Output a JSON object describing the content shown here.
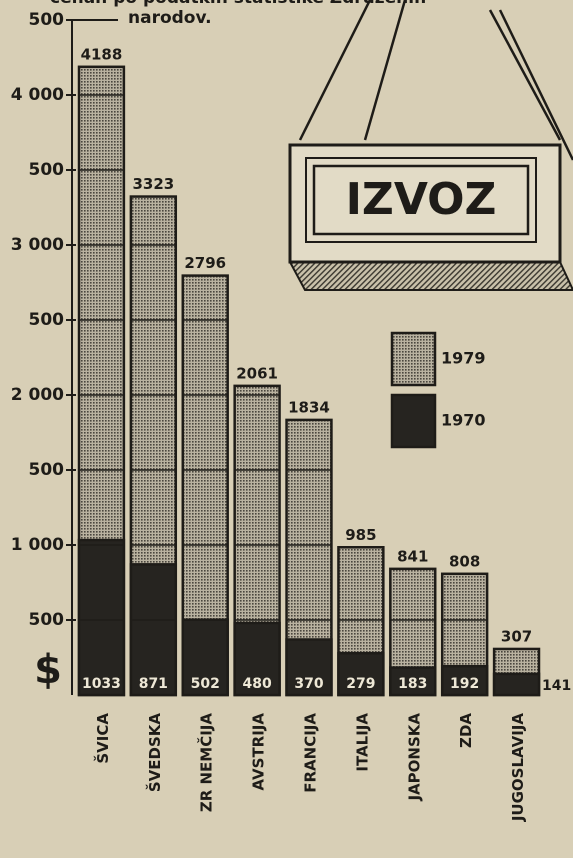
{
  "chart_data": {
    "type": "bar",
    "notes": [
      "cenah po podatkih statistike Združenih",
      "narodov."
    ],
    "annotation": "IZVOZ",
    "y_axis_label": "$",
    "categories": [
      "ŠVICA",
      "ŠVEDSKA",
      "ZR NEMČIJA",
      "AVSTRIJA",
      "FRANCIJA",
      "ITALIJA",
      "JAPONSKA",
      "ZDA",
      "JUGOSLAVIJA"
    ],
    "series": [
      {
        "name": "1979",
        "color": "#8f8a7c",
        "values": [
          4188,
          3323,
          2796,
          2061,
          1834,
          985,
          841,
          808,
          307
        ]
      },
      {
        "name": "1970",
        "color": "#262420",
        "values": [
          1033,
          871,
          502,
          480,
          370,
          279,
          183,
          192,
          141
        ]
      }
    ],
    "ylim": [
      0,
      4500
    ],
    "yticks": [
      500,
      {
        "value": 1000,
        "label": "1 000"
      },
      {
        "value": 1500,
        "label": "500"
      },
      {
        "value": 2000,
        "label": "2 000"
      },
      {
        "value": 2500,
        "label": "500"
      },
      {
        "value": 3000,
        "label": "3 000"
      },
      {
        "value": 3500,
        "label": "500"
      },
      {
        "value": 4000,
        "label": "4 000"
      },
      {
        "value": 4500,
        "label": "500"
      }
    ]
  }
}
